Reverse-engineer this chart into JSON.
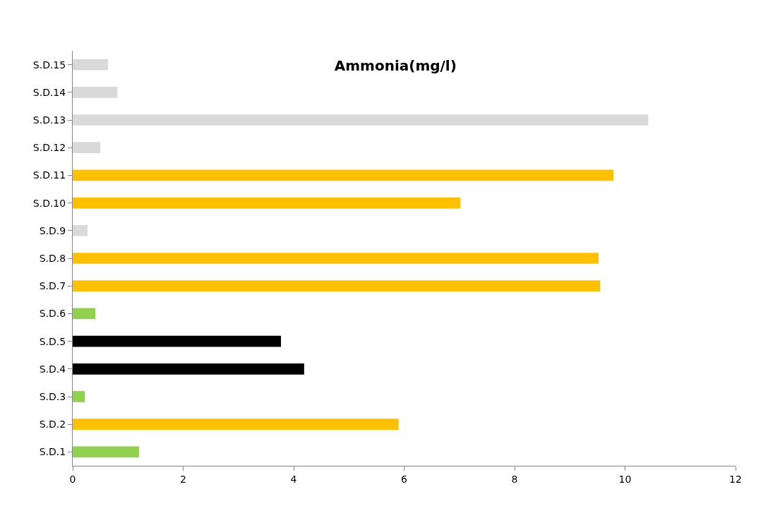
{
  "chart_data": {
    "type": "bar",
    "orientation": "horizontal",
    "title": "Ammonia(mg/l)",
    "categories": [
      "S.D.15",
      "S.D.14",
      "S.D.13",
      "S.D.12",
      "S.D.11",
      "S.D.10",
      "S.D.9",
      "S.D.8",
      "S.D.7",
      "S.D.6",
      "S.D.5",
      "S.D.4",
      "S.D.3",
      "S.D.2",
      "S.D.1"
    ],
    "values": [
      0.64,
      0.81,
      10.42,
      0.5,
      9.79,
      7.02,
      0.27,
      9.52,
      9.55,
      0.41,
      3.77,
      4.19,
      0.22,
      5.9,
      1.2
    ],
    "colors": [
      "#d9d9d9",
      "#d9d9d9",
      "#d9d9d9",
      "#d9d9d9",
      "#ffc000",
      "#ffc000",
      "#d9d9d9",
      "#ffc000",
      "#ffc000",
      "#92d050",
      "#000000",
      "#000000",
      "#92d050",
      "#ffc000",
      "#92d050"
    ],
    "xlim": [
      0,
      12
    ],
    "xticks": [
      0,
      2,
      4,
      6,
      8,
      10,
      12
    ]
  }
}
